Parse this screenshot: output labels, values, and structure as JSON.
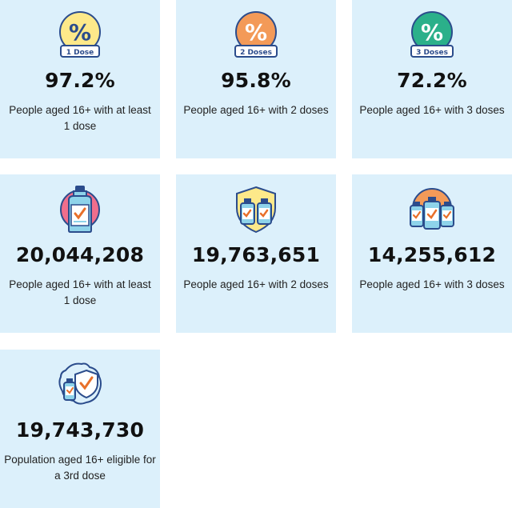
{
  "cards": [
    {
      "badge": "1 Dose",
      "icon": "percent-badge-icon",
      "circle_color": "#fde98a",
      "value": "97.2%",
      "desc": "People aged 16+ with at least 1 dose"
    },
    {
      "badge": "2 Doses",
      "icon": "percent-badge-icon",
      "circle_color": "#f39a58",
      "value": "95.8%",
      "desc": "People aged 16+ with 2 doses"
    },
    {
      "badge": "3 Doses",
      "icon": "percent-badge-icon",
      "circle_color": "#2bb08a",
      "value": "72.2%",
      "desc": "People aged 16+ with 3 doses"
    },
    {
      "icon": "vaccine-bottle-icon",
      "value": "20,044,208",
      "desc": "People aged 16+ with at least 1 dose"
    },
    {
      "icon": "two-vaccine-bottles-shield-icon",
      "value": "19,763,651",
      "desc": "People aged 16+ with 2 doses"
    },
    {
      "icon": "three-vaccine-bottles-icon",
      "value": "14,255,612",
      "desc": "People aged 16+ with 3 doses"
    },
    {
      "icon": "vaccine-shield-map-icon",
      "value": "19,743,730",
      "desc": "Population aged 16+ eligible for a 3rd dose"
    }
  ],
  "colors": {
    "card_bg": "#dcf0fb",
    "outline": "#2b4c8c",
    "bottle_fill": "#8ed3ea",
    "check": "#e8702a"
  }
}
